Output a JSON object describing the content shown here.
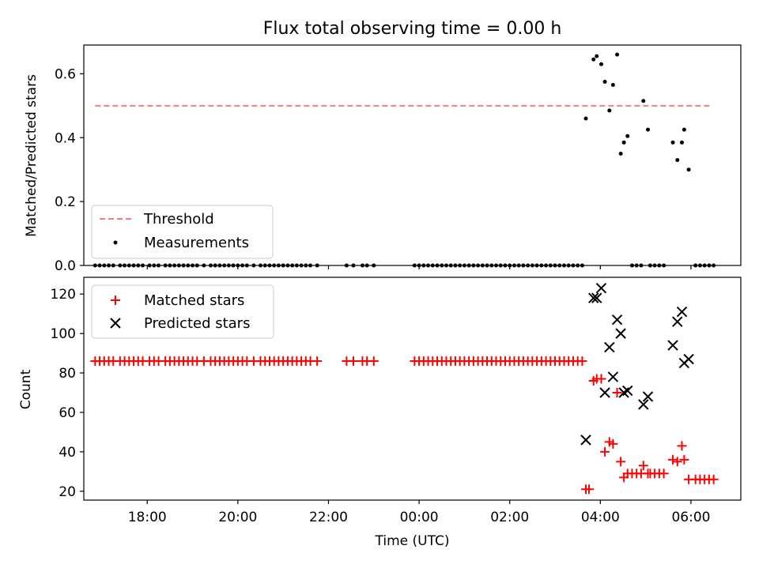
{
  "figure": {
    "title": "Flux total observing time = 0.00 h",
    "xlabel": "Time (UTC)",
    "colors": {
      "threshold": "#f08080",
      "measurements": "#000000",
      "matched": "#ff0000",
      "predicted": "#000000"
    }
  },
  "chart_data": [
    {
      "type": "scatter",
      "ylabel": "Matched/Predicted stars",
      "xlabel": "",
      "xlim": [
        -7.4,
        7.1
      ],
      "ylim": [
        0,
        0.69
      ],
      "x_ticks": [
        -6,
        -4,
        -2,
        0,
        2,
        4,
        6
      ],
      "x_tick_labels": [
        "18:00",
        "20:00",
        "22:00",
        "00:00",
        "02:00",
        "04:00",
        "06:00"
      ],
      "y_ticks": [
        0.0,
        0.2,
        0.4,
        0.6
      ],
      "y_tick_labels": [
        "0.0",
        "0.2",
        "0.4",
        "0.6"
      ],
      "legend": {
        "placement": "lower-left",
        "entries": [
          "Threshold",
          "Measurements"
        ]
      },
      "threshold": {
        "name": "Threshold",
        "x": [
          -7.15,
          6.45
        ],
        "y": [
          0.5,
          0.5
        ]
      },
      "measurements": {
        "name": "Measurements",
        "x": [
          -7.15,
          -7.05,
          -6.95,
          -6.85,
          -6.75,
          -6.6,
          -6.5,
          -6.4,
          -6.3,
          -6.2,
          -6.1,
          -5.95,
          -5.85,
          -5.75,
          -5.6,
          -5.5,
          -5.4,
          -5.3,
          -5.2,
          -5.1,
          -5.0,
          -4.9,
          -4.75,
          -4.6,
          -4.5,
          -4.4,
          -4.3,
          -4.2,
          -4.1,
          -4.0,
          -3.9,
          -3.8,
          -3.65,
          -3.5,
          -3.4,
          -3.3,
          -3.2,
          -3.1,
          -3.0,
          -2.9,
          -2.8,
          -2.7,
          -2.6,
          -2.5,
          -2.4,
          -2.25,
          -1.6,
          -1.45,
          -1.25,
          -1.15,
          -1.0,
          -0.1,
          0.0,
          0.1,
          0.2,
          0.3,
          0.4,
          0.5,
          0.6,
          0.7,
          0.8,
          0.9,
          1.0,
          1.1,
          1.2,
          1.3,
          1.4,
          1.5,
          1.6,
          1.7,
          1.8,
          1.9,
          2.0,
          2.1,
          2.2,
          2.3,
          2.4,
          2.5,
          2.6,
          2.7,
          2.8,
          2.9,
          3.0,
          3.1,
          3.2,
          3.3,
          3.4,
          3.5,
          3.6,
          4.7,
          4.8,
          4.9,
          5.1,
          5.2,
          5.3,
          5.4,
          6.1,
          6.2,
          6.3,
          6.4,
          6.5,
          3.68,
          3.85,
          3.92,
          4.02,
          4.1,
          4.2,
          4.28,
          4.37,
          4.45,
          4.52,
          4.6,
          4.95,
          5.05,
          5.6,
          5.7,
          5.8,
          5.85,
          5.95
        ],
        "y": [
          0,
          0,
          0,
          0,
          0,
          0,
          0,
          0,
          0,
          0,
          0,
          0,
          0,
          0,
          0,
          0,
          0,
          0,
          0,
          0,
          0,
          0,
          0,
          0,
          0,
          0,
          0,
          0,
          0,
          0,
          0,
          0,
          0,
          0,
          0,
          0,
          0,
          0,
          0,
          0,
          0,
          0,
          0,
          0,
          0,
          0,
          0,
          0,
          0,
          0,
          0,
          0,
          0,
          0,
          0,
          0,
          0,
          0,
          0,
          0,
          0,
          0,
          0,
          0,
          0,
          0,
          0,
          0,
          0,
          0,
          0,
          0,
          0,
          0,
          0,
          0,
          0,
          0,
          0,
          0,
          0,
          0,
          0,
          0,
          0,
          0,
          0,
          0,
          0,
          0,
          0,
          0,
          0,
          0,
          0,
          0,
          0,
          0,
          0,
          0,
          0,
          0.46,
          0.645,
          0.655,
          0.63,
          0.575,
          0.485,
          0.565,
          0.66,
          0.35,
          0.385,
          0.405,
          0.515,
          0.425,
          0.385,
          0.33,
          0.385,
          0.425,
          0.3
        ]
      }
    },
    {
      "type": "scatter",
      "ylabel": "Count",
      "xlabel": "Time (UTC)",
      "xlim": [
        -7.4,
        7.1
      ],
      "ylim": [
        15.5,
        128.5
      ],
      "x_ticks": [
        -6,
        -4,
        -2,
        0,
        2,
        4,
        6
      ],
      "x_tick_labels": [
        "18:00",
        "20:00",
        "22:00",
        "00:00",
        "02:00",
        "04:00",
        "06:00"
      ],
      "y_ticks": [
        20,
        40,
        60,
        80,
        100,
        120
      ],
      "y_tick_labels": [
        "20",
        "40",
        "60",
        "80",
        "100",
        "120"
      ],
      "legend": {
        "placement": "upper-left",
        "entries": [
          "Matched stars",
          "Predicted stars"
        ]
      },
      "series": [
        {
          "name": "Matched stars",
          "marker": "plus",
          "x": [
            -7.15,
            -7.05,
            -6.95,
            -6.85,
            -6.75,
            -6.6,
            -6.5,
            -6.4,
            -6.3,
            -6.2,
            -6.1,
            -5.95,
            -5.85,
            -5.75,
            -5.6,
            -5.5,
            -5.4,
            -5.3,
            -5.2,
            -5.1,
            -5.0,
            -4.9,
            -4.75,
            -4.6,
            -4.5,
            -4.4,
            -4.3,
            -4.2,
            -4.1,
            -4.0,
            -3.9,
            -3.8,
            -3.65,
            -3.5,
            -3.4,
            -3.3,
            -3.2,
            -3.1,
            -3.0,
            -2.9,
            -2.8,
            -2.7,
            -2.6,
            -2.5,
            -2.4,
            -2.25,
            -1.6,
            -1.45,
            -1.25,
            -1.15,
            -1.0,
            -0.1,
            0.0,
            0.1,
            0.2,
            0.3,
            0.4,
            0.5,
            0.6,
            0.7,
            0.8,
            0.9,
            1.0,
            1.1,
            1.2,
            1.3,
            1.4,
            1.5,
            1.6,
            1.7,
            1.8,
            1.9,
            2.0,
            2.1,
            2.2,
            2.3,
            2.4,
            2.5,
            2.6,
            2.7,
            2.8,
            2.9,
            3.0,
            3.1,
            3.2,
            3.3,
            3.4,
            3.5,
            3.6,
            3.68,
            3.75,
            3.85,
            3.92,
            4.02,
            4.1,
            4.2,
            4.28,
            4.37,
            4.45,
            4.52,
            4.6,
            4.7,
            4.8,
            4.9,
            4.95,
            5.05,
            5.1,
            5.2,
            5.3,
            5.4,
            5.6,
            5.7,
            5.8,
            5.85,
            5.95,
            6.1,
            6.2,
            6.3,
            6.4,
            6.5
          ],
          "y": [
            86,
            86,
            86,
            86,
            86,
            86,
            86,
            86,
            86,
            86,
            86,
            86,
            86,
            86,
            86,
            86,
            86,
            86,
            86,
            86,
            86,
            86,
            86,
            86,
            86,
            86,
            86,
            86,
            86,
            86,
            86,
            86,
            86,
            86,
            86,
            86,
            86,
            86,
            86,
            86,
            86,
            86,
            86,
            86,
            86,
            86,
            86,
            86,
            86,
            86,
            86,
            86,
            86,
            86,
            86,
            86,
            86,
            86,
            86,
            86,
            86,
            86,
            86,
            86,
            86,
            86,
            86,
            86,
            86,
            86,
            86,
            86,
            86,
            86,
            86,
            86,
            86,
            86,
            86,
            86,
            86,
            86,
            86,
            86,
            86,
            86,
            86,
            86,
            86,
            21,
            21,
            76,
            77,
            77,
            40,
            45,
            44,
            70,
            35,
            27,
            29,
            29,
            29,
            29,
            33,
            29,
            29,
            29,
            29,
            29,
            36,
            35,
            43,
            36,
            26,
            26,
            26,
            26,
            26,
            26
          ]
        },
        {
          "name": "Predicted stars",
          "marker": "x",
          "x": [
            3.68,
            3.85,
            3.92,
            4.02,
            4.1,
            4.2,
            4.28,
            4.37,
            4.45,
            4.52,
            4.6,
            4.95,
            5.05,
            5.6,
            5.7,
            5.8,
            5.85,
            5.95
          ],
          "y": [
            46,
            118,
            118,
            123,
            70,
            93,
            78,
            107,
            100,
            70,
            71,
            64,
            68,
            94,
            106,
            111,
            85,
            87
          ]
        }
      ]
    }
  ]
}
